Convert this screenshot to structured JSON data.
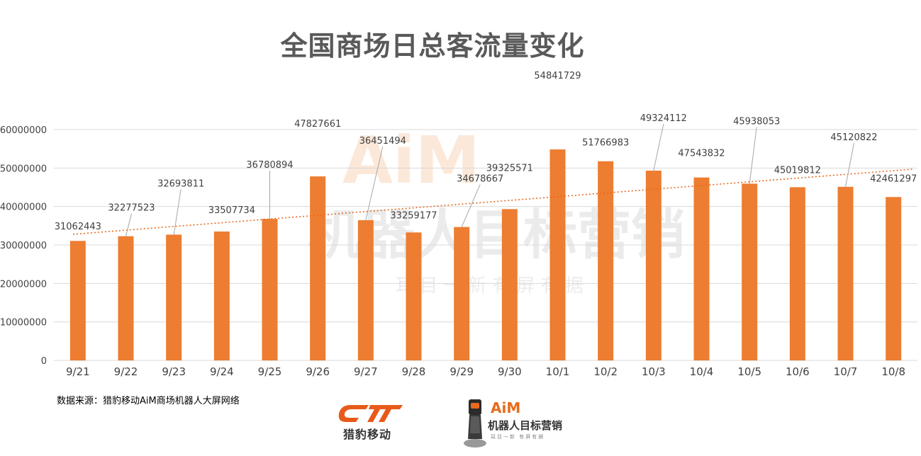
{
  "chart_data": {
    "type": "bar",
    "title": "全国商场日总客流量变化",
    "categories": [
      "9/21",
      "9/22",
      "9/23",
      "9/24",
      "9/25",
      "9/26",
      "9/27",
      "9/28",
      "9/29",
      "9/30",
      "10/1",
      "10/2",
      "10/3",
      "10/4",
      "10/5",
      "10/6",
      "10/7",
      "10/8"
    ],
    "values": [
      31062443,
      32277523,
      32693811,
      33507734,
      36780894,
      47827661,
      36451494,
      33259177,
      34678667,
      39325571,
      54841729,
      51766983,
      49324112,
      47543832,
      45938053,
      45019812,
      45120822,
      42461297
    ],
    "y_ticks": [
      "0",
      "10000000",
      "20000000",
      "30000000",
      "40000000",
      "50000000",
      "60000000"
    ],
    "ylim": [
      0,
      60000000
    ],
    "xlabel": "",
    "ylabel": "",
    "trendline": "linear",
    "grid": true,
    "colors": {
      "bar": "#ed7d31",
      "trend": "#e86a1d",
      "grid": "#d9d9d9",
      "leader": "#a6a6a6"
    }
  },
  "source_text": "数据来源：猎豹移动AiM商场机器人大屏网络",
  "logos": {
    "left_name": "猎豹移动",
    "right_brand": "AiM",
    "right_name": "机器人目标营销",
    "right_tagline": "耳目一新  有屏有据"
  },
  "watermark": {
    "brand": "AiM",
    "name": "机器人目标营销",
    "tagline": "耳 目 一 新   有 屏 有 据"
  }
}
